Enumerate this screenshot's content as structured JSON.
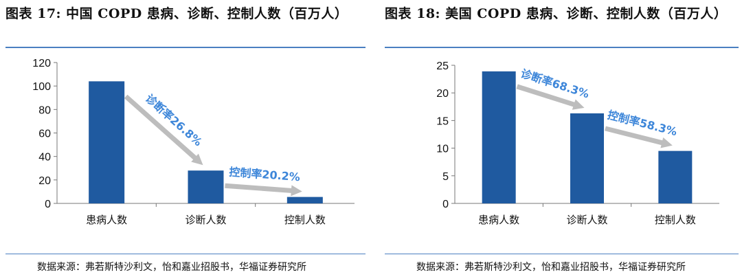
{
  "left_panel": {
    "title": "图表 17:  中国 COPD 患病、诊断、控制人数（百万人）",
    "source": "数据来源：弗若斯特沙利文，怡和嘉业招股书，华福证券研究所"
  },
  "right_panel": {
    "title": "图表 18:  美国 COPD 患病、诊断、控制人数（百万人）",
    "source": "数据来源：弗若斯特沙利文，怡和嘉业招股书，华福证券研究所"
  },
  "colors": {
    "bar": "#1f5aa0",
    "arrow": "#bdbdbd",
    "annotation": "#3d86d9",
    "rule": "#4a7fc1"
  },
  "chart_data": [
    {
      "type": "bar",
      "title": "图表 17:  中国 COPD 患病、诊断、控制人数（百万人）",
      "categories": [
        "患病人数",
        "诊断人数",
        "控制人数"
      ],
      "values": [
        104,
        28,
        5.5
      ],
      "ylim": [
        0,
        120
      ],
      "yticks": [
        "0",
        "20",
        "40",
        "60",
        "80",
        "100",
        "120"
      ],
      "annotations": [
        {
          "text": "诊断率26.8%",
          "from": 0,
          "to": 1
        },
        {
          "text": "控制率20.2%",
          "from": 1,
          "to": 2
        }
      ],
      "grid": false,
      "legend": "none"
    },
    {
      "type": "bar",
      "title": "图表 18:  美国 COPD 患病、诊断、控制人数（百万人）",
      "categories": [
        "患病人数",
        "诊断人数",
        "控制人数"
      ],
      "values": [
        23.9,
        16.3,
        9.5
      ],
      "ylim": [
        0,
        25
      ],
      "yticks": [
        "0",
        "5",
        "10",
        "15",
        "20",
        "25"
      ],
      "annotations": [
        {
          "text": "诊断率68.3%",
          "from": 0,
          "to": 1
        },
        {
          "text": "控制率58.3%",
          "from": 1,
          "to": 2
        }
      ],
      "grid": false,
      "legend": "none"
    }
  ]
}
